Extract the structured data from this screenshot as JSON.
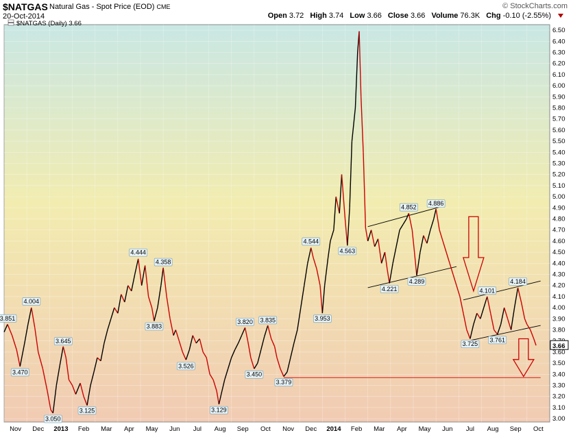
{
  "header": {
    "ticker": "$NATGAS",
    "description": "Natural Gas - Spot Price (EOD)",
    "exchange": "CME",
    "date": "20-Oct-2014",
    "brand": "© StockCharts.com",
    "open_label": "Open",
    "open": "3.72",
    "high_label": "High",
    "high": "3.74",
    "low_label": "Low",
    "low": "3.66",
    "close_label": "Close",
    "close": "3.66",
    "volume_label": "Volume",
    "volume": "76.3K",
    "chg_label": "Chg",
    "chg": "-0.10 (-2.55%)"
  },
  "legend": {
    "label": "$NATGAS (Daily) 3.66"
  },
  "colors": {
    "up": "#000000",
    "down": "#cc0000",
    "bg_top": "#c8e6e3",
    "bg_mid": "#f3ebae",
    "bg_bottom": "#f1cdb4",
    "label_fill": "#e8f3f7"
  },
  "chart_data": {
    "type": "line",
    "title": "$NATGAS (Daily) 3.66",
    "xlabel": "",
    "ylabel": "",
    "ylim": [
      2.97,
      6.55
    ],
    "yticks": [
      "3.00",
      "3.10",
      "3.20",
      "3.30",
      "3.40",
      "3.50",
      "3.60",
      "3.70",
      "3.80",
      "3.90",
      "4.00",
      "4.10",
      "4.20",
      "4.30",
      "4.40",
      "4.50",
      "4.60",
      "4.70",
      "4.80",
      "4.90",
      "5.00",
      "5.10",
      "5.20",
      "5.30",
      "5.40",
      "5.50",
      "5.60",
      "5.70",
      "5.80",
      "5.90",
      "6.00",
      "6.10",
      "6.20",
      "6.30",
      "6.40",
      "6.50"
    ],
    "months": [
      {
        "label": "Nov",
        "t": 0.5
      },
      {
        "label": "Dec",
        "t": 1.5
      },
      {
        "label": "2013",
        "t": 2.5,
        "bold": true
      },
      {
        "label": "Feb",
        "t": 3.5
      },
      {
        "label": "Mar",
        "t": 4.5
      },
      {
        "label": "Apr",
        "t": 5.5
      },
      {
        "label": "May",
        "t": 6.5
      },
      {
        "label": "Jun",
        "t": 7.5
      },
      {
        "label": "Jul",
        "t": 8.5
      },
      {
        "label": "Aug",
        "t": 9.5
      },
      {
        "label": "Sep",
        "t": 10.5
      },
      {
        "label": "Oct",
        "t": 11.5
      },
      {
        "label": "Nov",
        "t": 12.5
      },
      {
        "label": "Dec",
        "t": 13.5
      },
      {
        "label": "2014",
        "t": 14.5,
        "bold": true
      },
      {
        "label": "Feb",
        "t": 15.5
      },
      {
        "label": "Mar",
        "t": 16.5
      },
      {
        "label": "Apr",
        "t": 17.5
      },
      {
        "label": "May",
        "t": 18.5
      },
      {
        "label": "Jun",
        "t": 19.5
      },
      {
        "label": "Jul",
        "t": 20.5
      },
      {
        "label": "Aug",
        "t": 21.5
      },
      {
        "label": "Sep",
        "t": 22.5
      },
      {
        "label": "Oct",
        "t": 23.5
      }
    ],
    "series": [
      {
        "points": [
          [
            0.0,
            3.78
          ],
          [
            0.15,
            3.85
          ],
          [
            0.35,
            3.75
          ],
          [
            0.55,
            3.62
          ],
          [
            0.7,
            3.47
          ],
          [
            0.9,
            3.68
          ],
          [
            1.05,
            3.85
          ],
          [
            1.2,
            4.0
          ],
          [
            1.35,
            3.82
          ],
          [
            1.5,
            3.6
          ],
          [
            1.7,
            3.45
          ],
          [
            1.9,
            3.25
          ],
          [
            2.05,
            3.08
          ],
          [
            2.15,
            3.05
          ],
          [
            2.3,
            3.3
          ],
          [
            2.45,
            3.48
          ],
          [
            2.6,
            3.65
          ],
          [
            2.72,
            3.55
          ],
          [
            2.85,
            3.35
          ],
          [
            3.0,
            3.3
          ],
          [
            3.15,
            3.22
          ],
          [
            3.35,
            3.32
          ],
          [
            3.5,
            3.2
          ],
          [
            3.65,
            3.12
          ],
          [
            3.8,
            3.3
          ],
          [
            3.95,
            3.42
          ],
          [
            4.1,
            3.55
          ],
          [
            4.25,
            3.52
          ],
          [
            4.4,
            3.68
          ],
          [
            4.55,
            3.8
          ],
          [
            4.7,
            3.9
          ],
          [
            4.85,
            4.0
          ],
          [
            5.0,
            3.95
          ],
          [
            5.15,
            4.12
          ],
          [
            5.3,
            4.05
          ],
          [
            5.45,
            4.2
          ],
          [
            5.6,
            4.15
          ],
          [
            5.75,
            4.3
          ],
          [
            5.9,
            4.44
          ],
          [
            6.05,
            4.2
          ],
          [
            6.2,
            4.38
          ],
          [
            6.35,
            4.1
          ],
          [
            6.5,
            4.0
          ],
          [
            6.6,
            3.88
          ],
          [
            6.75,
            4.0
          ],
          [
            6.9,
            4.2
          ],
          [
            7.0,
            4.36
          ],
          [
            7.15,
            4.1
          ],
          [
            7.3,
            3.9
          ],
          [
            7.45,
            3.75
          ],
          [
            7.55,
            3.8
          ],
          [
            7.7,
            3.7
          ],
          [
            7.85,
            3.6
          ],
          [
            8.0,
            3.53
          ],
          [
            8.15,
            3.62
          ],
          [
            8.3,
            3.75
          ],
          [
            8.45,
            3.68
          ],
          [
            8.6,
            3.72
          ],
          [
            8.75,
            3.6
          ],
          [
            8.9,
            3.55
          ],
          [
            9.05,
            3.4
          ],
          [
            9.2,
            3.35
          ],
          [
            9.35,
            3.25
          ],
          [
            9.45,
            3.13
          ],
          [
            9.55,
            3.22
          ],
          [
            9.7,
            3.35
          ],
          [
            9.85,
            3.45
          ],
          [
            10.0,
            3.55
          ],
          [
            10.15,
            3.62
          ],
          [
            10.3,
            3.68
          ],
          [
            10.45,
            3.75
          ],
          [
            10.6,
            3.82
          ],
          [
            10.72,
            3.7
          ],
          [
            10.85,
            3.55
          ],
          [
            11.0,
            3.45
          ],
          [
            11.15,
            3.5
          ],
          [
            11.3,
            3.62
          ],
          [
            11.45,
            3.74
          ],
          [
            11.6,
            3.84
          ],
          [
            11.75,
            3.72
          ],
          [
            11.9,
            3.65
          ],
          [
            12.0,
            3.55
          ],
          [
            12.15,
            3.45
          ],
          [
            12.3,
            3.38
          ],
          [
            12.45,
            3.42
          ],
          [
            12.6,
            3.55
          ],
          [
            12.75,
            3.68
          ],
          [
            12.9,
            3.8
          ],
          [
            13.05,
            4.0
          ],
          [
            13.2,
            4.2
          ],
          [
            13.35,
            4.4
          ],
          [
            13.5,
            4.54
          ],
          [
            13.6,
            4.45
          ],
          [
            13.75,
            4.35
          ],
          [
            13.9,
            4.2
          ],
          [
            14.0,
            3.95
          ],
          [
            14.1,
            4.2
          ],
          [
            14.25,
            4.45
          ],
          [
            14.35,
            4.6
          ],
          [
            14.5,
            4.7
          ],
          [
            14.6,
            5.0
          ],
          [
            14.75,
            4.85
          ],
          [
            14.85,
            5.2
          ],
          [
            15.0,
            4.8
          ],
          [
            15.1,
            4.56
          ],
          [
            15.2,
            4.9
          ],
          [
            15.3,
            5.5
          ],
          [
            15.45,
            5.8
          ],
          [
            15.55,
            6.3
          ],
          [
            15.62,
            6.49
          ],
          [
            15.7,
            5.9
          ],
          [
            15.8,
            5.4
          ],
          [
            15.9,
            4.72
          ],
          [
            16.0,
            4.6
          ],
          [
            16.15,
            4.7
          ],
          [
            16.3,
            4.55
          ],
          [
            16.45,
            4.62
          ],
          [
            16.6,
            4.4
          ],
          [
            16.75,
            4.5
          ],
          [
            16.85,
            4.35
          ],
          [
            16.95,
            4.22
          ],
          [
            17.1,
            4.4
          ],
          [
            17.25,
            4.55
          ],
          [
            17.4,
            4.7
          ],
          [
            17.55,
            4.75
          ],
          [
            17.7,
            4.8
          ],
          [
            17.8,
            4.85
          ],
          [
            17.95,
            4.7
          ],
          [
            18.05,
            4.5
          ],
          [
            18.15,
            4.29
          ],
          [
            18.3,
            4.5
          ],
          [
            18.45,
            4.65
          ],
          [
            18.6,
            4.58
          ],
          [
            18.75,
            4.7
          ],
          [
            18.9,
            4.8
          ],
          [
            19.0,
            4.89
          ],
          [
            19.15,
            4.7
          ],
          [
            19.3,
            4.6
          ],
          [
            19.45,
            4.5
          ],
          [
            19.6,
            4.4
          ],
          [
            19.75,
            4.3
          ],
          [
            19.9,
            4.2
          ],
          [
            20.05,
            4.1
          ],
          [
            20.2,
            3.95
          ],
          [
            20.35,
            3.8
          ],
          [
            20.5,
            3.72
          ],
          [
            20.65,
            3.85
          ],
          [
            20.8,
            3.95
          ],
          [
            20.95,
            3.9
          ],
          [
            21.1,
            4.0
          ],
          [
            21.25,
            4.1
          ],
          [
            21.4,
            3.95
          ],
          [
            21.55,
            3.8
          ],
          [
            21.7,
            3.76
          ],
          [
            21.85,
            3.85
          ],
          [
            22.0,
            4.0
          ],
          [
            22.15,
            3.9
          ],
          [
            22.3,
            3.8
          ],
          [
            22.45,
            4.0
          ],
          [
            22.6,
            4.18
          ],
          [
            22.75,
            4.05
          ],
          [
            22.9,
            3.9
          ],
          [
            23.0,
            3.85
          ],
          [
            23.15,
            3.8
          ],
          [
            23.3,
            3.72
          ],
          [
            23.4,
            3.66
          ]
        ]
      }
    ],
    "labels": [
      {
        "t": 0.15,
        "v": 3.851,
        "text": "3.851",
        "pos": "above"
      },
      {
        "t": 1.2,
        "v": 4.004,
        "text": "4.004",
        "pos": "above"
      },
      {
        "t": 0.7,
        "v": 3.47,
        "text": "3.470",
        "pos": "below"
      },
      {
        "t": 2.15,
        "v": 3.05,
        "text": "3.050",
        "pos": "below"
      },
      {
        "t": 2.6,
        "v": 3.645,
        "text": "3.645",
        "pos": "above"
      },
      {
        "t": 3.65,
        "v": 3.125,
        "text": "3.125",
        "pos": "below"
      },
      {
        "t": 5.9,
        "v": 4.444,
        "text": "4.444",
        "pos": "above"
      },
      {
        "t": 6.6,
        "v": 3.883,
        "text": "3.883",
        "pos": "below"
      },
      {
        "t": 7.0,
        "v": 4.358,
        "text": "4.358",
        "pos": "above"
      },
      {
        "t": 8.0,
        "v": 3.526,
        "text": "3.526",
        "pos": "below"
      },
      {
        "t": 9.45,
        "v": 3.129,
        "text": "3.129",
        "pos": "below"
      },
      {
        "t": 10.6,
        "v": 3.82,
        "text": "3.820",
        "pos": "above"
      },
      {
        "t": 11.0,
        "v": 3.45,
        "text": "3.450",
        "pos": "below"
      },
      {
        "t": 11.6,
        "v": 3.835,
        "text": "3.835",
        "pos": "above"
      },
      {
        "t": 12.3,
        "v": 3.379,
        "text": "3.379",
        "pos": "below"
      },
      {
        "t": 13.5,
        "v": 4.544,
        "text": "4.544",
        "pos": "above"
      },
      {
        "t": 14.0,
        "v": 3.953,
        "text": "3.953",
        "pos": "below"
      },
      {
        "t": 15.1,
        "v": 4.563,
        "text": "4.563",
        "pos": "below"
      },
      {
        "t": 16.95,
        "v": 4.221,
        "text": "4.221",
        "pos": "below"
      },
      {
        "t": 17.8,
        "v": 4.852,
        "text": "4.852",
        "pos": "above"
      },
      {
        "t": 18.15,
        "v": 4.289,
        "text": "4.289",
        "pos": "below"
      },
      {
        "t": 19.0,
        "v": 4.886,
        "text": "4.886",
        "pos": "above"
      },
      {
        "t": 20.5,
        "v": 3.725,
        "text": "3.725",
        "pos": "below"
      },
      {
        "t": 21.25,
        "v": 4.101,
        "text": "4.101",
        "pos": "above"
      },
      {
        "t": 21.7,
        "v": 3.761,
        "text": "3.761",
        "pos": "below"
      },
      {
        "t": 22.6,
        "v": 4.184,
        "text": "4.184",
        "pos": "above"
      }
    ],
    "trendlines": [
      {
        "from": [
          16.0,
          4.73
        ],
        "to": [
          19.4,
          4.92
        ]
      },
      {
        "from": [
          16.0,
          4.18
        ],
        "to": [
          19.9,
          4.37
        ]
      },
      {
        "from": [
          20.2,
          4.07
        ],
        "to": [
          23.6,
          4.24
        ]
      },
      {
        "from": [
          20.4,
          3.7
        ],
        "to": [
          23.6,
          3.84
        ]
      },
      {
        "from": [
          12.3,
          3.37
        ],
        "to": [
          23.6,
          3.37
        ],
        "color": "#cc0000"
      }
    ],
    "arrows": [
      {
        "t": 20.65,
        "v_top": 4.82,
        "v_bottom": 4.15
      },
      {
        "t": 22.85,
        "v_top": 3.72,
        "v_bottom": 3.38
      }
    ],
    "last": {
      "value": 3.66,
      "text": "3.66"
    }
  }
}
